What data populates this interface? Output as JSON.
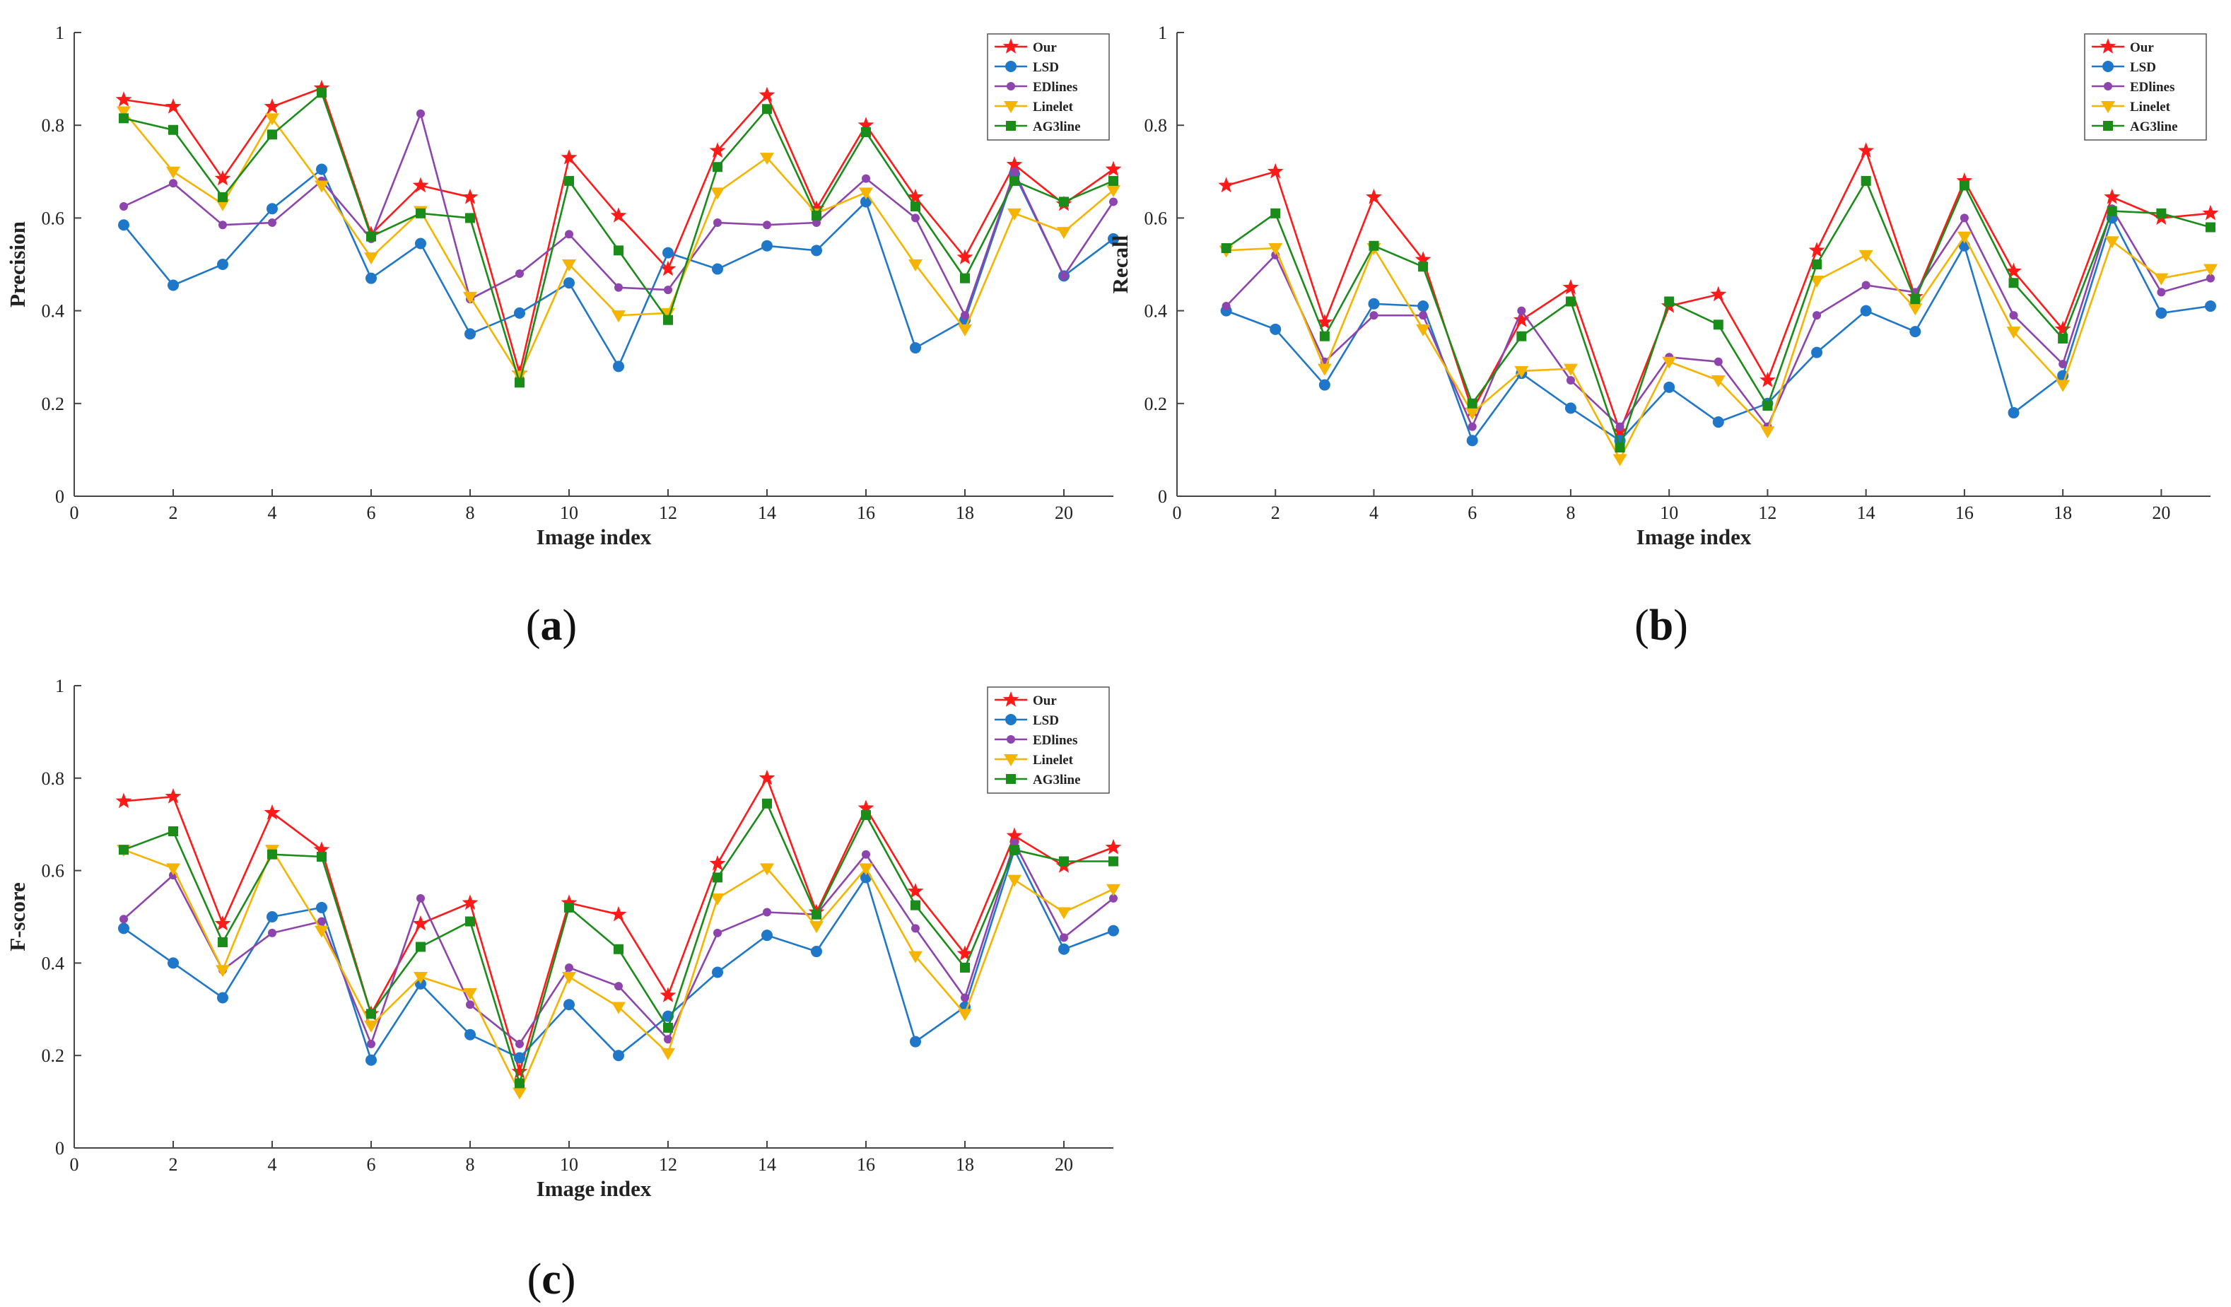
{
  "chart_data": [
    {
      "type": "line",
      "caption": "a",
      "xlabel": "Image index",
      "ylabel": "Precision",
      "xlim": [
        0,
        21
      ],
      "ylim": [
        0,
        1
      ],
      "xticks": [
        "0",
        "2",
        "4",
        "6",
        "8",
        "10",
        "12",
        "14",
        "16",
        "18",
        "20"
      ],
      "yticks": [
        "0",
        "0.2",
        "0.4",
        "0.6",
        "0.8",
        "1"
      ],
      "legend_position": "top-right",
      "grid": false,
      "x": [
        1,
        2,
        3,
        4,
        5,
        6,
        7,
        8,
        9,
        10,
        11,
        12,
        13,
        14,
        15,
        16,
        17,
        18,
        19,
        20,
        21
      ],
      "series": [
        {
          "name": "Our",
          "color": "#ff1a1a",
          "marker": "star",
          "values": [
            0.855,
            0.84,
            0.685,
            0.84,
            0.88,
            0.565,
            0.67,
            0.645,
            0.265,
            0.73,
            0.605,
            0.49,
            0.745,
            0.865,
            0.62,
            0.8,
            0.645,
            0.515,
            0.715,
            0.63,
            0.705
          ]
        },
        {
          "name": "LSD",
          "color": "#1f77c9",
          "marker": "circle",
          "values": [
            0.585,
            0.455,
            0.5,
            0.62,
            0.705,
            0.47,
            0.545,
            0.35,
            0.395,
            0.46,
            0.28,
            0.525,
            0.49,
            0.54,
            0.53,
            0.635,
            0.32,
            0.38,
            0.695,
            0.475,
            0.555
          ]
        },
        {
          "name": "EDlines",
          "color": "#8e44ad",
          "marker": "circle-small",
          "values": [
            0.625,
            0.675,
            0.585,
            0.59,
            0.68,
            0.555,
            0.825,
            0.425,
            0.48,
            0.565,
            0.45,
            0.445,
            0.59,
            0.585,
            0.59,
            0.685,
            0.6,
            0.39,
            0.7,
            0.475,
            0.635
          ]
        },
        {
          "name": "Linelet",
          "color": "#f5b400",
          "marker": "triangle-down",
          "values": [
            0.83,
            0.7,
            0.63,
            0.815,
            0.67,
            0.515,
            0.615,
            0.43,
            0.26,
            0.5,
            0.39,
            0.395,
            0.655,
            0.73,
            0.61,
            0.655,
            0.5,
            0.36,
            0.61,
            0.57,
            0.66
          ]
        },
        {
          "name": "AG3line",
          "color": "#1a8c1a",
          "marker": "square",
          "values": [
            0.815,
            0.79,
            0.645,
            0.78,
            0.87,
            0.56,
            0.61,
            0.6,
            0.245,
            0.68,
            0.53,
            0.38,
            0.71,
            0.835,
            0.605,
            0.785,
            0.625,
            0.47,
            0.68,
            0.635,
            0.68
          ]
        }
      ]
    },
    {
      "type": "line",
      "caption": "b",
      "xlabel": "Image index",
      "ylabel": "Recall",
      "xlim": [
        0,
        21
      ],
      "ylim": [
        0,
        1
      ],
      "xticks": [
        "0",
        "2",
        "4",
        "6",
        "8",
        "10",
        "12",
        "14",
        "16",
        "18",
        "20"
      ],
      "yticks": [
        "0",
        "0.2",
        "0.4",
        "0.6",
        "0.8",
        "1"
      ],
      "legend_position": "top-right",
      "grid": false,
      "x": [
        1,
        2,
        3,
        4,
        5,
        6,
        7,
        8,
        9,
        10,
        11,
        12,
        13,
        14,
        15,
        16,
        17,
        18,
        19,
        20,
        21
      ],
      "series": [
        {
          "name": "Our",
          "color": "#ff1a1a",
          "marker": "star",
          "values": [
            0.67,
            0.7,
            0.375,
            0.645,
            0.51,
            0.185,
            0.38,
            0.45,
            0.14,
            0.41,
            0.435,
            0.25,
            0.53,
            0.745,
            0.43,
            0.68,
            0.485,
            0.36,
            0.645,
            0.6,
            0.61
          ]
        },
        {
          "name": "LSD",
          "color": "#1f77c9",
          "marker": "circle",
          "values": [
            0.4,
            0.36,
            0.24,
            0.415,
            0.41,
            0.12,
            0.265,
            0.19,
            0.12,
            0.235,
            0.16,
            0.2,
            0.31,
            0.4,
            0.355,
            0.54,
            0.18,
            0.26,
            0.6,
            0.395,
            0.41
          ]
        },
        {
          "name": "EDlines",
          "color": "#8e44ad",
          "marker": "circle-small",
          "values": [
            0.41,
            0.52,
            0.29,
            0.39,
            0.39,
            0.15,
            0.4,
            0.25,
            0.15,
            0.3,
            0.29,
            0.15,
            0.39,
            0.455,
            0.44,
            0.6,
            0.39,
            0.285,
            0.62,
            0.44,
            0.47
          ]
        },
        {
          "name": "Linelet",
          "color": "#f5b400",
          "marker": "triangle-down",
          "values": [
            0.53,
            0.535,
            0.275,
            0.535,
            0.36,
            0.18,
            0.27,
            0.275,
            0.08,
            0.29,
            0.25,
            0.14,
            0.465,
            0.52,
            0.405,
            0.56,
            0.355,
            0.24,
            0.55,
            0.47,
            0.49
          ]
        },
        {
          "name": "AG3line",
          "color": "#1a8c1a",
          "marker": "square",
          "values": [
            0.535,
            0.61,
            0.345,
            0.54,
            0.495,
            0.2,
            0.345,
            0.42,
            0.105,
            0.42,
            0.37,
            0.195,
            0.5,
            0.68,
            0.425,
            0.67,
            0.46,
            0.34,
            0.615,
            0.61,
            0.58
          ]
        }
      ]
    },
    {
      "type": "line",
      "caption": "c",
      "xlabel": "Image index",
      "ylabel": "F-score",
      "xlim": [
        0,
        21
      ],
      "ylim": [
        0,
        1
      ],
      "xticks": [
        "0",
        "2",
        "4",
        "6",
        "8",
        "10",
        "12",
        "14",
        "16",
        "18",
        "20"
      ],
      "yticks": [
        "0",
        "0.2",
        "0.4",
        "0.6",
        "0.8",
        "1"
      ],
      "legend_position": "top-right",
      "grid": false,
      "x": [
        1,
        2,
        3,
        4,
        5,
        6,
        7,
        8,
        9,
        10,
        11,
        12,
        13,
        14,
        15,
        16,
        17,
        18,
        19,
        20,
        21
      ],
      "series": [
        {
          "name": "Our",
          "color": "#ff1a1a",
          "marker": "star",
          "values": [
            0.75,
            0.76,
            0.485,
            0.725,
            0.645,
            0.29,
            0.485,
            0.53,
            0.165,
            0.53,
            0.505,
            0.33,
            0.615,
            0.8,
            0.51,
            0.735,
            0.555,
            0.42,
            0.675,
            0.61,
            0.65
          ]
        },
        {
          "name": "LSD",
          "color": "#1f77c9",
          "marker": "circle",
          "values": [
            0.475,
            0.4,
            0.325,
            0.5,
            0.52,
            0.19,
            0.355,
            0.245,
            0.195,
            0.31,
            0.2,
            0.285,
            0.38,
            0.46,
            0.425,
            0.585,
            0.23,
            0.305,
            0.645,
            0.43,
            0.47
          ]
        },
        {
          "name": "EDlines",
          "color": "#8e44ad",
          "marker": "circle-small",
          "values": [
            0.495,
            0.59,
            0.385,
            0.465,
            0.49,
            0.225,
            0.54,
            0.31,
            0.225,
            0.39,
            0.35,
            0.235,
            0.465,
            0.51,
            0.505,
            0.635,
            0.475,
            0.325,
            0.66,
            0.455,
            0.54
          ]
        },
        {
          "name": "Linelet",
          "color": "#f5b400",
          "marker": "triangle-down",
          "values": [
            0.645,
            0.605,
            0.385,
            0.645,
            0.47,
            0.265,
            0.37,
            0.335,
            0.12,
            0.37,
            0.305,
            0.205,
            0.54,
            0.605,
            0.48,
            0.605,
            0.415,
            0.29,
            0.58,
            0.51,
            0.56
          ]
        },
        {
          "name": "AG3line",
          "color": "#1a8c1a",
          "marker": "square",
          "values": [
            0.645,
            0.685,
            0.445,
            0.635,
            0.63,
            0.29,
            0.435,
            0.49,
            0.14,
            0.52,
            0.43,
            0.26,
            0.585,
            0.745,
            0.505,
            0.72,
            0.525,
            0.39,
            0.645,
            0.62,
            0.62
          ]
        }
      ]
    }
  ]
}
